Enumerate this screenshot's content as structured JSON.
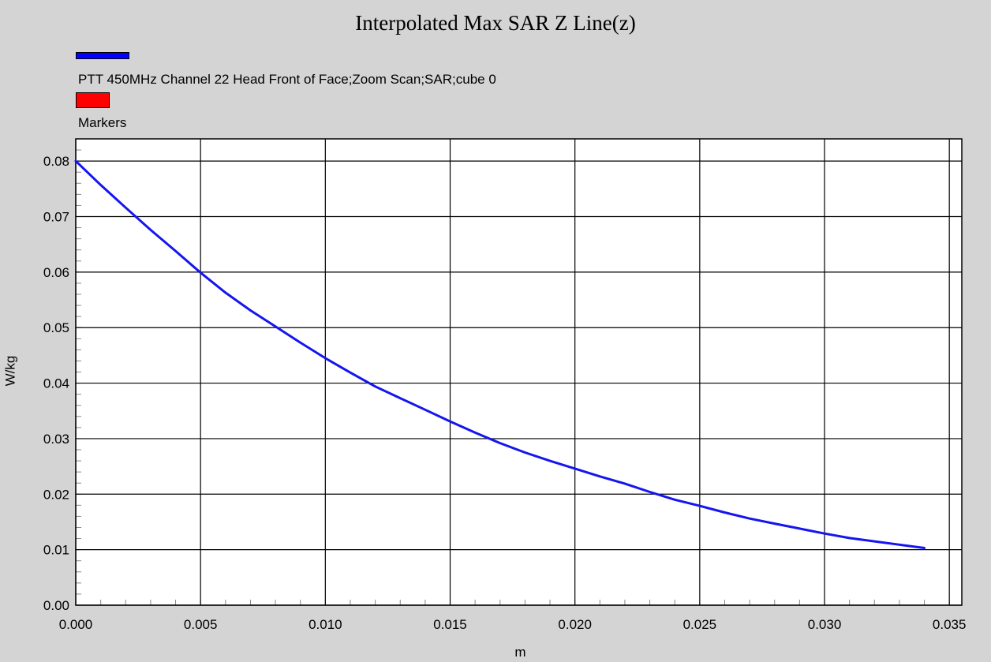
{
  "chart_data": {
    "type": "line",
    "title": "Interpolated Max SAR Z Line(z)",
    "xlabel": "m",
    "ylabel": "W/kg",
    "xlim": [
      0,
      0.0355
    ],
    "ylim": [
      0,
      0.084
    ],
    "x_ticks": [
      0.0,
      0.005,
      0.01,
      0.015,
      0.02,
      0.025,
      0.03,
      0.035
    ],
    "x_tick_labels": [
      "0.000",
      "0.005",
      "0.010",
      "0.015",
      "0.020",
      "0.025",
      "0.030",
      "0.035"
    ],
    "y_ticks": [
      0.0,
      0.01,
      0.02,
      0.03,
      0.04,
      0.05,
      0.06,
      0.07,
      0.08
    ],
    "y_tick_labels": [
      "0.00",
      "0.01",
      "0.02",
      "0.03",
      "0.04",
      "0.05",
      "0.06",
      "0.07",
      "0.08"
    ],
    "grid": true,
    "legend": [
      {
        "label": "PTT 450MHz Channel 22 Head Front of Face;Zoom Scan;SAR;cube 0",
        "color": "#0000ff"
      },
      {
        "label": "Markers",
        "color": "#ff0000"
      }
    ],
    "series": [
      {
        "name": "PTT 450MHz Channel 22 Head Front of Face;Zoom Scan;SAR;cube 0",
        "color": "#1515f0",
        "x": [
          0.0,
          0.001,
          0.002,
          0.003,
          0.004,
          0.005,
          0.006,
          0.007,
          0.008,
          0.009,
          0.01,
          0.011,
          0.012,
          0.013,
          0.014,
          0.015,
          0.016,
          0.017,
          0.018,
          0.019,
          0.02,
          0.021,
          0.022,
          0.023,
          0.024,
          0.025,
          0.026,
          0.027,
          0.028,
          0.029,
          0.03,
          0.031,
          0.032,
          0.033,
          0.034
        ],
        "y": [
          0.08,
          0.0757,
          0.0716,
          0.0676,
          0.0638,
          0.0599,
          0.0563,
          0.0531,
          0.0502,
          0.0473,
          0.0445,
          0.0419,
          0.0394,
          0.0373,
          0.0352,
          0.0331,
          0.0311,
          0.0292,
          0.0275,
          0.026,
          0.0246,
          0.0232,
          0.0219,
          0.0204,
          0.019,
          0.0179,
          0.0167,
          0.0156,
          0.0147,
          0.0138,
          0.0129,
          0.0121,
          0.0115,
          0.0109,
          0.0103
        ]
      }
    ]
  }
}
